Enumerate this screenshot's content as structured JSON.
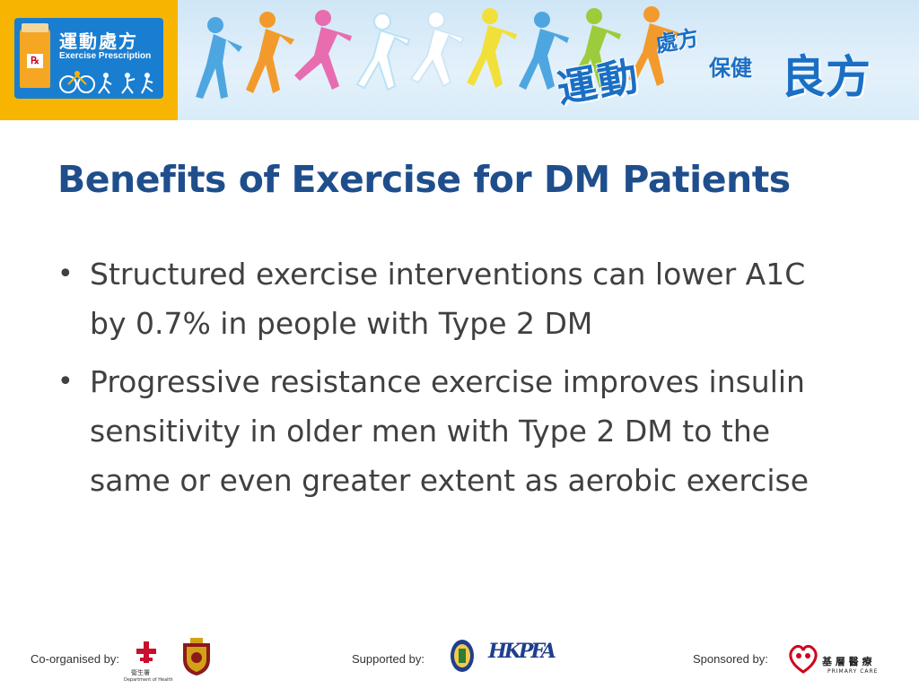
{
  "banner": {
    "logo_title": "運動處方",
    "logo_subtitle": "Exercise Prescription",
    "logo_rx": "℞",
    "brand_main": "運動",
    "brand_small": "處方",
    "brand_small2": "保健",
    "brand_big": "良方",
    "colors": {
      "logo_bg": "#f7b400",
      "logo_inner": "#1a7ed0",
      "brand_blue": "#1a6fc4"
    },
    "runner_colors": [
      "#4ea6e0",
      "#f39a2c",
      "#e86cb0",
      "#b9e2f6",
      "#ffffff",
      "#f2e03a",
      "#4ea6e0",
      "#9ccc3c",
      "#f39a2c"
    ]
  },
  "slide": {
    "title": "Benefits of Exercise for DM Patients",
    "bullets": [
      {
        "text": "Structured exercise interventions can lower A1C by 0.7% in people with Type 2 DM"
      },
      {
        "text": "Progressive resistance exercise improves insulin sensitivity in older men with Type 2 DM to the same or even greater extent as aerobic exercise"
      }
    ],
    "bullet_symbol": "•"
  },
  "footer": {
    "coorganised_label": "Co-organised by:",
    "supported_label": "Supported by:",
    "sponsored_label": "Sponsored by:",
    "doh_caption": "衞生署",
    "doh_caption_en": "Department of Health",
    "primary_care_cn": "基 層 醫 療",
    "primary_care_en": "PRIMARY CARE",
    "hkpfa_text": "HKPFA"
  }
}
